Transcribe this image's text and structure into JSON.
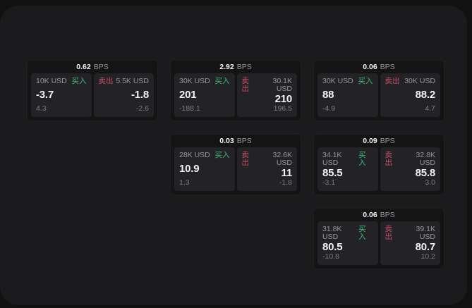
{
  "theme": {
    "outer_bg": "#111112",
    "panel_bg": "#1b1b1d",
    "card_bg": "#141415",
    "subpanel_bg": "#232327",
    "text_primary": "#f2f2f4",
    "text_secondary": "#97979b",
    "text_tertiary": "#7d7d81",
    "buy_color": "#3fba74",
    "sell_color": "#c94f68"
  },
  "labels": {
    "bps_unit": "BPS",
    "buy": "买入",
    "sell": "卖出"
  },
  "cards": [
    {
      "row": 1,
      "col": 1,
      "bps": "0.62",
      "buy": {
        "amount": "10K USD",
        "value": "-3.7",
        "delta": "4.3"
      },
      "sell": {
        "amount": "5.5K USD",
        "value": "-1.8",
        "delta": "-2.6"
      }
    },
    {
      "row": 1,
      "col": 2,
      "bps": "2.92",
      "buy": {
        "amount": "30K USD",
        "value": "201",
        "delta": "-188.1"
      },
      "sell": {
        "amount": "30.1K USD",
        "value": "210",
        "delta": "196.5"
      }
    },
    {
      "row": 1,
      "col": 3,
      "bps": "0.06",
      "buy": {
        "amount": "30K USD",
        "value": "88",
        "delta": "-4.9"
      },
      "sell": {
        "amount": "30K USD",
        "value": "88.2",
        "delta": "4.7"
      }
    },
    {
      "row": 2,
      "col": 2,
      "bps": "0.03",
      "buy": {
        "amount": "28K USD",
        "value": "10.9",
        "delta": "1.3"
      },
      "sell": {
        "amount": "32.6K USD",
        "value": "11",
        "delta": "-1.8"
      }
    },
    {
      "row": 2,
      "col": 3,
      "bps": "0.09",
      "buy": {
        "amount": "34.1K USD",
        "value": "85.5",
        "delta": "-3.1"
      },
      "sell": {
        "amount": "32.8K USD",
        "value": "85.8",
        "delta": "3.0"
      }
    },
    {
      "row": 3,
      "col": 3,
      "bps": "0.06",
      "buy": {
        "amount": "31.8K USD",
        "value": "80.5",
        "delta": "-10.8"
      },
      "sell": {
        "amount": "39.1K USD",
        "value": "80.7",
        "delta": "10.2"
      }
    }
  ]
}
